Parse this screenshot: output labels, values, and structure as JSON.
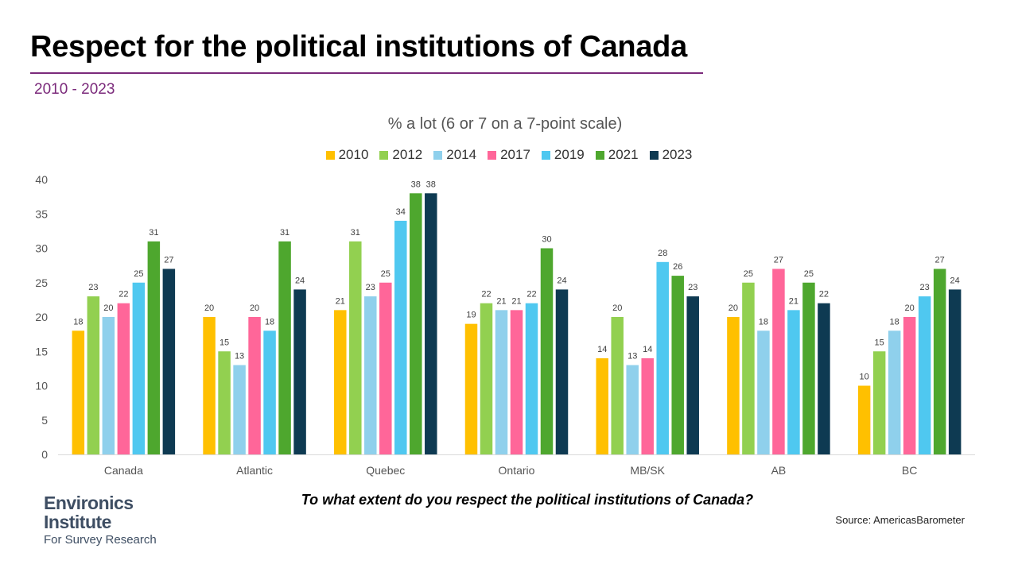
{
  "header": {
    "title": "Respect for the political institutions of Canada",
    "subtitle": "2010 - 2023"
  },
  "footer": {
    "question": "To what extent do you respect the political institutions of Canada?",
    "source": "Source: AmericasBarometer"
  },
  "logo": {
    "line1": "Environics",
    "line2": "Institute",
    "line3": "For Survey Research"
  },
  "chart_data": {
    "type": "bar",
    "title": "% a lot (6 or 7 on a 7-point scale)",
    "xlabel": "",
    "ylabel": "",
    "ylim": [
      0,
      40
    ],
    "yticks": [
      0,
      5,
      10,
      15,
      20,
      25,
      30,
      35,
      40
    ],
    "grid": false,
    "legend_position": "top",
    "data_labels": true,
    "categories": [
      "Canada",
      "Atlantic",
      "Quebec",
      "Ontario",
      "MB/SK",
      "AB",
      "BC"
    ],
    "series": [
      {
        "name": "2010",
        "color": "#ffc000",
        "values": [
          18,
          20,
          21,
          19,
          14,
          20,
          10
        ]
      },
      {
        "name": "2012",
        "color": "#92d050",
        "values": [
          23,
          15,
          31,
          22,
          20,
          25,
          15
        ]
      },
      {
        "name": "2014",
        "color": "#8fd0ec",
        "values": [
          20,
          13,
          23,
          21,
          13,
          18,
          18
        ]
      },
      {
        "name": "2017",
        "color": "#ff6699",
        "values": [
          22,
          20,
          25,
          21,
          14,
          27,
          20
        ]
      },
      {
        "name": "2019",
        "color": "#4fc8f0",
        "values": [
          25,
          18,
          34,
          22,
          28,
          21,
          23
        ]
      },
      {
        "name": "2021",
        "color": "#4ea72e",
        "values": [
          31,
          31,
          38,
          30,
          26,
          25,
          27
        ]
      },
      {
        "name": "2023",
        "color": "#0e3a52",
        "values": [
          27,
          24,
          38,
          24,
          23,
          22,
          24
        ]
      }
    ]
  }
}
